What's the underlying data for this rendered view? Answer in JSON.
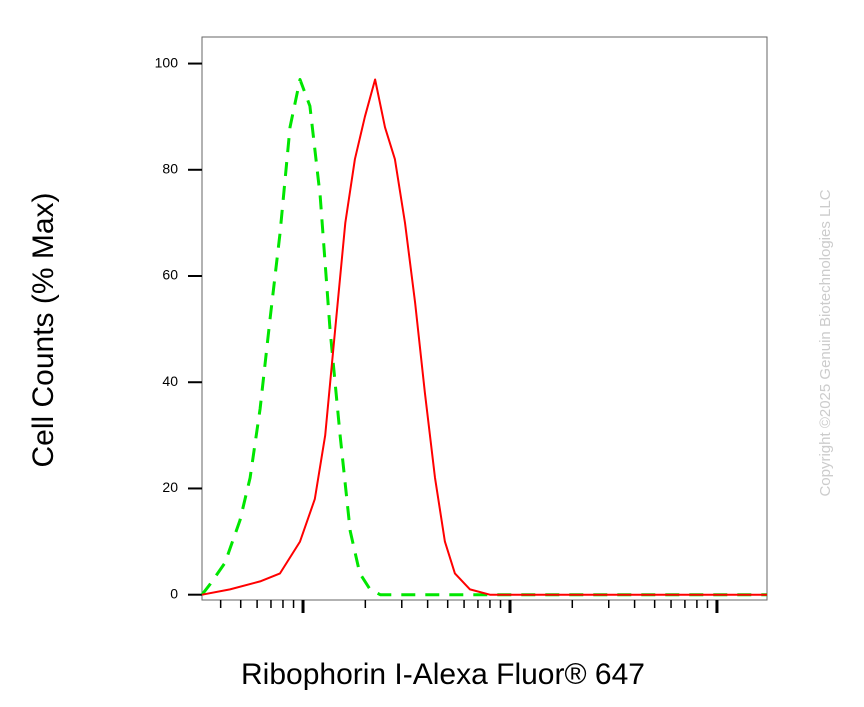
{
  "chart_data": {
    "type": "line",
    "y_label": "Cell Counts (% Max)",
    "x_label": "Ribophorin I-Alexa Fluor® 647",
    "watermark": "Copyright ©2025 Genuin Biotechnologies LLC",
    "xscale": "log",
    "xlim": [
      3.25,
      1745
    ],
    "xticks": [
      10,
      100,
      1000
    ],
    "ylim": [
      -1,
      105
    ],
    "yticks": [
      0,
      20,
      40,
      60,
      80,
      100
    ],
    "series": [
      {
        "color": "#00e600",
        "dashed": true,
        "x": [
          3.25,
          3.56,
          4.2,
          4.96,
          5.55,
          6.2,
          6.93,
          7.74,
          8.65,
          9.67,
          10.8,
          12.1,
          13.5,
          15.1,
          16.9,
          18.8,
          21.1,
          23.6,
          36.7,
          1745
        ],
        "values": [
          0,
          2,
          6,
          14,
          22,
          35,
          52,
          68,
          88,
          97,
          92,
          75,
          50,
          30,
          12,
          4,
          1,
          0,
          0,
          0
        ]
      },
      {
        "color": "#ff0000",
        "dashed": false,
        "x": [
          3.25,
          4.44,
          6.2,
          7.74,
          9.67,
          11.4,
          12.8,
          14.3,
          16.0,
          17.8,
          19.9,
          22.3,
          24.9,
          27.8,
          31.1,
          34.8,
          38.8,
          43.4,
          48.5,
          54.2,
          64.1,
          80.0,
          1745
        ],
        "values": [
          0,
          1,
          2.5,
          4,
          10,
          18,
          30,
          50,
          70,
          82,
          90,
          97,
          88,
          82,
          70,
          55,
          38,
          22,
          10,
          4,
          1,
          0,
          0
        ]
      }
    ]
  }
}
